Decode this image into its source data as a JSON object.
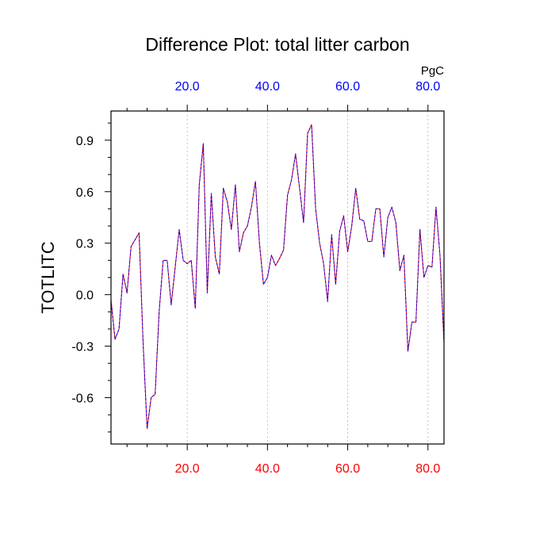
{
  "chart_data": {
    "type": "line",
    "title": "Difference Plot: total litter carbon",
    "xlabel": "",
    "ylabel": "TOTLITC",
    "units": "PgC",
    "xlim": [
      1,
      84
    ],
    "ylim": [
      -0.87,
      1.07
    ],
    "grid": "vertical dashed",
    "x_ticks": [
      20,
      40,
      60,
      80
    ],
    "x_tick_labels_bottom": [
      "20.0",
      "40.0",
      "60.0",
      "80.0"
    ],
    "x_tick_labels_top": [
      "20.0",
      "40.0",
      "60.0",
      "80.0"
    ],
    "y_ticks": [
      -0.6,
      -0.3,
      0.0,
      0.3,
      0.6,
      0.9
    ],
    "y_tick_labels": [
      "-0.6",
      "-0.3",
      "0.0",
      "0.3",
      "0.6",
      "0.9"
    ],
    "colors": {
      "bottom_tick_labels": "#ff0000",
      "top_tick_labels": "#0000ff",
      "series_under": "#ff0000",
      "series_over": "#0000ff"
    },
    "series": [
      {
        "values": [
          -0.03,
          -0.26,
          -0.2,
          0.12,
          0.01,
          0.28,
          0.32,
          0.36,
          -0.28,
          -0.78,
          -0.6,
          -0.58,
          -0.1,
          0.2,
          0.2,
          -0.06,
          0.16,
          0.38,
          0.2,
          0.18,
          0.2,
          -0.08,
          0.64,
          0.88,
          0.01,
          0.59,
          0.22,
          0.12,
          0.62,
          0.54,
          0.38,
          0.64,
          0.25,
          0.36,
          0.4,
          0.51,
          0.66,
          0.3,
          0.06,
          0.1,
          0.23,
          0.17,
          0.21,
          0.26,
          0.58,
          0.67,
          0.82,
          0.62,
          0.42,
          0.94,
          0.99,
          0.5,
          0.3,
          0.18,
          -0.04,
          0.35,
          0.06,
          0.37,
          0.46,
          0.25,
          0.4,
          0.62,
          0.44,
          0.43,
          0.31,
          0.31,
          0.5,
          0.5,
          0.22,
          0.45,
          0.51,
          0.42,
          0.14,
          0.23,
          -0.33,
          -0.16,
          -0.16,
          0.38,
          0.1,
          0.17,
          0.16,
          0.51,
          0.23,
          -0.28
        ]
      }
    ]
  }
}
